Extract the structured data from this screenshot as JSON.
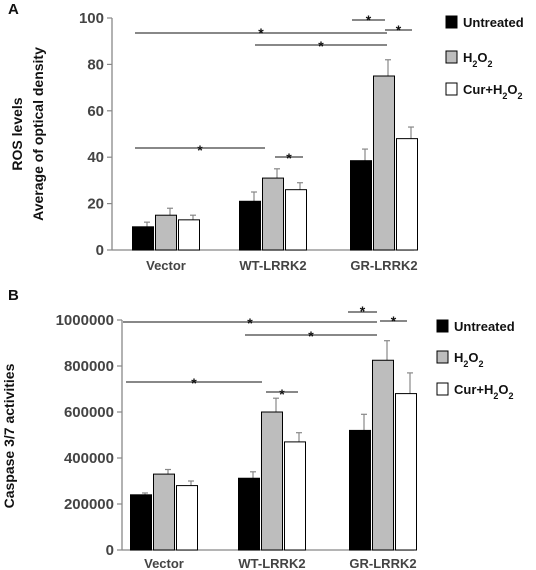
{
  "chart_data": [
    {
      "panel": "A",
      "type": "bar",
      "ylabel_lines": [
        "ROS levels",
        "Average of optical density"
      ],
      "categories": [
        "Vector",
        "WT-LRRK2",
        "GR-LRRK2"
      ],
      "ylim": [
        0,
        100
      ],
      "yticks": [
        0,
        20,
        40,
        60,
        80,
        100
      ],
      "ytick_labels": [
        "0",
        "20",
        "40",
        "60",
        "80",
        "100"
      ],
      "series": [
        {
          "name": "Untreated",
          "values": [
            10,
            21,
            38.5
          ],
          "errors": [
            2,
            4,
            5
          ]
        },
        {
          "name": "H2O2",
          "values": [
            15,
            31,
            75
          ],
          "errors": [
            3,
            4,
            7
          ]
        },
        {
          "name": "Cur+H2O2",
          "values": [
            13,
            26,
            48
          ],
          "errors": [
            2,
            3,
            5
          ]
        }
      ],
      "comparisons": [
        {
          "label": "*",
          "from": [
            0,
            0
          ],
          "to": [
            2,
            1
          ]
        },
        {
          "label": "*",
          "from": [
            1,
            0
          ],
          "to": [
            2,
            1
          ]
        },
        {
          "label": "*",
          "from": [
            2,
            0
          ],
          "to": [
            2,
            1
          ]
        },
        {
          "label": "*",
          "from": [
            2,
            1
          ],
          "to": [
            2,
            2
          ]
        },
        {
          "label": "*",
          "from": [
            0,
            0
          ],
          "to": [
            1,
            1
          ]
        },
        {
          "label": "*",
          "from": [
            1,
            1
          ],
          "to": [
            1,
            2
          ]
        }
      ]
    },
    {
      "panel": "B",
      "type": "bar",
      "ylabel_lines": [
        "Caspase 3/7 activities"
      ],
      "categories": [
        "Vector",
        "WT-LRRK2",
        "GR-LRRK2"
      ],
      "ylim": [
        0,
        1000000
      ],
      "yticks": [
        0,
        200000,
        400000,
        600000,
        800000,
        1000000
      ],
      "ytick_labels": [
        "0",
        "200000",
        "400000",
        "600000",
        "800000",
        "1000000"
      ],
      "series": [
        {
          "name": "Untreated",
          "values": [
            240000,
            312000,
            520000
          ],
          "errors": [
            8000,
            28000,
            70000
          ]
        },
        {
          "name": "H2O2",
          "values": [
            330000,
            600000,
            825000
          ],
          "errors": [
            20000,
            60000,
            85000
          ]
        },
        {
          "name": "Cur+H2O2",
          "values": [
            280000,
            470000,
            680000
          ],
          "errors": [
            20000,
            40000,
            90000
          ]
        }
      ],
      "comparisons": [
        {
          "label": "*",
          "from": [
            0,
            0
          ],
          "to": [
            2,
            1
          ]
        },
        {
          "label": "*",
          "from": [
            1,
            0
          ],
          "to": [
            2,
            1
          ]
        },
        {
          "label": "*",
          "from": [
            2,
            0
          ],
          "to": [
            2,
            1
          ]
        },
        {
          "label": "*",
          "from": [
            2,
            1
          ],
          "to": [
            2,
            2
          ]
        },
        {
          "label": "*",
          "from": [
            0,
            0
          ],
          "to": [
            1,
            1
          ]
        },
        {
          "label": "*",
          "from": [
            1,
            1
          ],
          "to": [
            1,
            2
          ]
        }
      ]
    }
  ],
  "legend": {
    "placement": "right",
    "items": [
      {
        "id": "untreated",
        "main": "Untreated",
        "sub": "",
        "tail": "",
        "color": "#000000"
      },
      {
        "id": "h2o2",
        "main": "H",
        "sub": "2",
        "tail": "O",
        "sub2": "2",
        "color": "#bdbdbd"
      },
      {
        "id": "cur-h2o2",
        "main": "Cur+H",
        "sub": "2",
        "tail": "O",
        "sub2": "2",
        "color": "#ffffff"
      }
    ]
  },
  "colors": {
    "untreated": "#000000",
    "h2o2": "#bdbdbd",
    "cur": "#ffffff",
    "axis": "#888888"
  }
}
